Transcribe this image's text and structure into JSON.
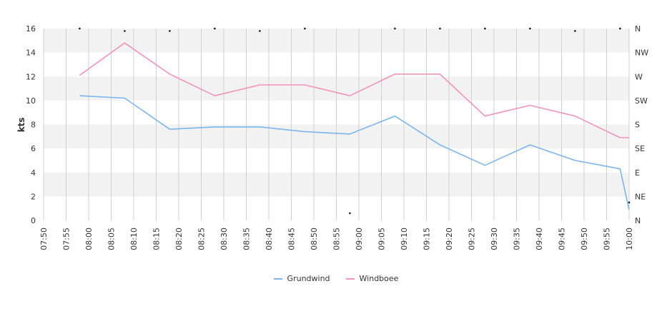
{
  "chart_data": {
    "type": "line",
    "x": [
      "07:50",
      "07:55",
      "08:00",
      "08:05",
      "08:10",
      "08:15",
      "08:20",
      "08:25",
      "08:30",
      "08:35",
      "08:40",
      "08:45",
      "08:50",
      "08:55",
      "09:00",
      "09:05",
      "09:10",
      "09:15",
      "09:20",
      "09:25",
      "09:30",
      "09:35",
      "09:40",
      "09:45",
      "09:50",
      "09:55",
      "10:00"
    ],
    "ylabel": "kts",
    "ylim": [
      0,
      16
    ],
    "yticks": [
      "0",
      "2",
      "4",
      "6",
      "8",
      "10",
      "12",
      "14",
      "16"
    ],
    "right_axis_ticks": [
      "N",
      "NE",
      "E",
      "SE",
      "S",
      "SW",
      "W",
      "NW",
      "N"
    ],
    "grid": true,
    "legend_position": "bottom",
    "series": [
      {
        "name": "Grundwind",
        "color": "#7cb5ec",
        "points": [
          [
            "07:58",
            10.4
          ],
          [
            "08:08",
            10.2
          ],
          [
            "08:18",
            7.6
          ],
          [
            "08:28",
            7.8
          ],
          [
            "08:38",
            7.8
          ],
          [
            "08:48",
            7.4
          ],
          [
            "08:58",
            7.2
          ],
          [
            "09:08",
            8.7
          ],
          [
            "09:18",
            6.3
          ],
          [
            "09:28",
            4.6
          ],
          [
            "09:38",
            6.3
          ],
          [
            "09:48",
            5.0
          ],
          [
            "09:58",
            4.3
          ],
          [
            "10:00",
            0.9
          ]
        ]
      },
      {
        "name": "Windboee",
        "color": "#f392bd",
        "points": [
          [
            "07:58",
            12.1
          ],
          [
            "08:08",
            14.8
          ],
          [
            "08:18",
            12.2
          ],
          [
            "08:28",
            10.4
          ],
          [
            "08:38",
            11.3
          ],
          [
            "08:48",
            11.3
          ],
          [
            "08:58",
            10.4
          ],
          [
            "09:08",
            12.2
          ],
          [
            "09:18",
            12.2
          ],
          [
            "09:28",
            8.7
          ],
          [
            "09:38",
            9.6
          ],
          [
            "09:48",
            8.7
          ],
          [
            "09:58",
            6.9
          ],
          [
            "10:00",
            6.9
          ]
        ]
      }
    ],
    "direction_markers": [
      [
        "07:58",
        16
      ],
      [
        "08:08",
        15.8
      ],
      [
        "08:18",
        15.8
      ],
      [
        "08:28",
        16
      ],
      [
        "08:38",
        15.8
      ],
      [
        "08:48",
        16
      ],
      [
        "08:58",
        0.6
      ],
      [
        "09:08",
        16
      ],
      [
        "09:18",
        16
      ],
      [
        "09:28",
        16
      ],
      [
        "09:38",
        16
      ],
      [
        "09:48",
        15.8
      ],
      [
        "09:58",
        16
      ],
      [
        "10:00",
        1.5
      ]
    ]
  }
}
